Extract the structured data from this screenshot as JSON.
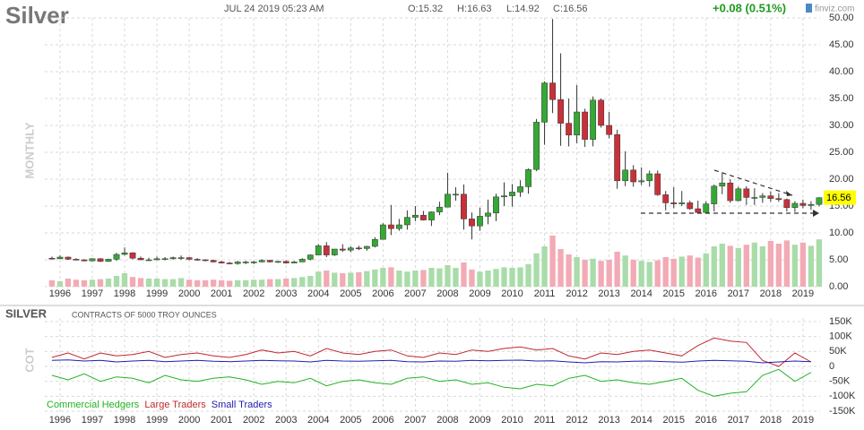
{
  "header": {
    "date": "JUL 24 2019 05:23 AM",
    "open": "O:15.32",
    "high": "H:16.63",
    "low": "L:14.92",
    "close": "C:16.56",
    "change": "+0.08 (0.51%)",
    "brand": "finviz.com"
  },
  "chart_data": [
    {
      "type": "candlestick",
      "title": "Silver",
      "period": "MONTHLY",
      "grid": true,
      "colors": {
        "up": "#35a835",
        "down": "#c8303a",
        "wick": "#333333",
        "volume_up": "#a9dca9",
        "volume_down": "#f3aab5",
        "last_label": "#ffff00"
      },
      "xlim": [
        1995.53,
        2019.53
      ],
      "xticks": [
        1996,
        1997,
        1998,
        1999,
        2000,
        2001,
        2002,
        2003,
        2004,
        2005,
        2006,
        2007,
        2008,
        2009,
        2010,
        2011,
        2012,
        2013,
        2014,
        2015,
        2016,
        2017,
        2018,
        2019
      ],
      "ylim": [
        0,
        50
      ],
      "yticks": [
        {
          "value": 0,
          "label": "0.00"
        },
        {
          "value": 5,
          "label": "5.00"
        },
        {
          "value": 10,
          "label": "10.00"
        },
        {
          "value": 15,
          "label": "15.00"
        },
        {
          "value": 20,
          "label": "20.00"
        },
        {
          "value": 25,
          "label": "25.00"
        },
        {
          "value": 30,
          "label": "30.00"
        },
        {
          "value": 35,
          "label": "35.00"
        },
        {
          "value": 40,
          "label": "40.00"
        },
        {
          "value": 45,
          "label": "45.00"
        },
        {
          "value": 50,
          "label": "50.00"
        }
      ],
      "x": [
        1995.75,
        1996.0,
        1996.25,
        1996.5,
        1996.75,
        1997.0,
        1997.25,
        1997.5,
        1997.75,
        1998.0,
        1998.25,
        1998.5,
        1998.75,
        1999.0,
        1999.25,
        1999.5,
        1999.75,
        2000.0,
        2000.25,
        2000.5,
        2000.75,
        2001.0,
        2001.25,
        2001.5,
        2001.75,
        2002.0,
        2002.25,
        2002.5,
        2002.75,
        2003.0,
        2003.25,
        2003.5,
        2003.75,
        2004.0,
        2004.25,
        2004.5,
        2004.75,
        2005.0,
        2005.25,
        2005.5,
        2005.75,
        2006.0,
        2006.25,
        2006.5,
        2006.75,
        2007.0,
        2007.25,
        2007.5,
        2007.75,
        2008.0,
        2008.25,
        2008.5,
        2008.75,
        2009.0,
        2009.25,
        2009.5,
        2009.75,
        2010.0,
        2010.25,
        2010.5,
        2010.75,
        2011.0,
        2011.25,
        2011.5,
        2011.75,
        2012.0,
        2012.25,
        2012.5,
        2012.75,
        2013.0,
        2013.25,
        2013.5,
        2013.75,
        2014.0,
        2014.25,
        2014.5,
        2014.75,
        2015.0,
        2015.25,
        2015.5,
        2015.75,
        2016.0,
        2016.25,
        2016.5,
        2016.75,
        2017.0,
        2017.25,
        2017.5,
        2017.75,
        2018.0,
        2018.25,
        2018.5,
        2018.75,
        2019.0,
        2019.25,
        2019.5
      ],
      "open": [
        5.3,
        5.2,
        5.5,
        5.1,
        5.0,
        4.8,
        5.2,
        4.7,
        5.1,
        6.0,
        6.3,
        5.3,
        5.0,
        5.0,
        5.2,
        5.2,
        5.4,
        5.4,
        5.1,
        5.0,
        4.9,
        4.6,
        4.4,
        4.3,
        4.6,
        4.6,
        4.6,
        4.9,
        4.6,
        4.7,
        4.4,
        4.6,
        5.1,
        5.9,
        7.6,
        5.9,
        7.0,
        6.8,
        7.2,
        7.1,
        7.5,
        8.8,
        11.5,
        10.8,
        11.5,
        12.9,
        13.3,
        12.4,
        13.9,
        14.8,
        17.2,
        17.2,
        12.6,
        11.3,
        13.1,
        13.7,
        16.7,
        16.9,
        17.6,
        18.6,
        21.8,
        30.6,
        37.9,
        34.8,
        30.4,
        28.2,
        32.5,
        27.4,
        34.7,
        30.0,
        28.3,
        19.7,
        21.7,
        19.5,
        19.7,
        21.0,
        17.1,
        15.6,
        15.4,
        15.6,
        14.5,
        13.8,
        15.4,
        18.7,
        19.3,
        16.0,
        18.2,
        16.6,
        16.6,
        16.9,
        16.4,
        16.2,
        14.7,
        15.5,
        15.1,
        15.3
      ],
      "high": [
        5.6,
        5.8,
        5.6,
        5.3,
        5.1,
        5.3,
        5.3,
        5.2,
        6.3,
        7.3,
        6.4,
        5.6,
        5.4,
        5.6,
        5.5,
        5.6,
        5.8,
        5.5,
        5.3,
        5.1,
        5.0,
        4.8,
        4.6,
        4.8,
        4.8,
        4.8,
        5.1,
        5.0,
        4.8,
        4.9,
        4.8,
        5.3,
        6.0,
        7.9,
        8.3,
        7.0,
        7.9,
        7.5,
        7.6,
        7.6,
        9.2,
        11.8,
        15.2,
        12.6,
        14.2,
        15.0,
        14.1,
        14.0,
        15.8,
        21.2,
        18.5,
        19.0,
        13.8,
        14.7,
        16.2,
        17.3,
        19.4,
        19.1,
        19.8,
        22.0,
        31.2,
        38.2,
        49.8,
        43.4,
        35.0,
        37.5,
        33.1,
        35.4,
        35.0,
        32.5,
        29.2,
        25.2,
        22.6,
        22.2,
        21.6,
        21.6,
        17.8,
        18.5,
        17.8,
        16.0,
        16.0,
        15.9,
        19.0,
        21.2,
        20.0,
        18.6,
        18.7,
        18.3,
        17.4,
        17.7,
        17.4,
        16.4,
        15.9,
        16.2,
        15.9,
        16.63
      ],
      "low": [
        5.1,
        5.1,
        5.0,
        4.9,
        4.7,
        4.7,
        4.6,
        4.6,
        4.8,
        5.8,
        5.1,
        4.9,
        4.8,
        4.9,
        4.9,
        5.0,
        5.0,
        4.9,
        4.8,
        4.7,
        4.5,
        4.3,
        4.2,
        4.1,
        4.2,
        4.2,
        4.5,
        4.5,
        4.4,
        4.3,
        4.4,
        4.6,
        4.9,
        5.9,
        5.5,
        5.7,
        6.5,
        6.4,
        6.8,
        6.7,
        7.3,
        8.8,
        9.6,
        10.4,
        10.6,
        12.2,
        12.3,
        11.3,
        13.3,
        14.8,
        16.0,
        10.6,
        8.8,
        10.4,
        11.6,
        12.2,
        15.0,
        14.9,
        16.7,
        17.3,
        21.5,
        26.4,
        32.3,
        26.2,
        26.1,
        26.7,
        26.0,
        26.1,
        29.6,
        27.6,
        18.2,
        18.7,
        18.6,
        18.9,
        18.6,
        16.9,
        14.2,
        14.6,
        15.0,
        14.3,
        13.6,
        13.7,
        14.0,
        17.2,
        15.6,
        15.9,
        15.2,
        15.2,
        15.6,
        15.8,
        15.8,
        14.0,
        13.9,
        14.6,
        14.3,
        14.92
      ],
      "close": [
        5.2,
        5.5,
        5.1,
        5.0,
        4.8,
        5.2,
        4.7,
        5.1,
        6.0,
        6.3,
        5.3,
        5.0,
        5.0,
        5.2,
        5.2,
        5.4,
        5.4,
        5.1,
        5.0,
        4.9,
        4.6,
        4.4,
        4.3,
        4.6,
        4.6,
        4.6,
        4.9,
        4.6,
        4.7,
        4.4,
        4.6,
        5.1,
        5.9,
        7.6,
        5.9,
        7.0,
        6.8,
        7.2,
        7.1,
        7.5,
        8.8,
        11.5,
        10.8,
        11.5,
        12.9,
        13.3,
        12.4,
        13.9,
        14.8,
        17.2,
        17.2,
        12.6,
        11.3,
        13.1,
        13.7,
        16.7,
        16.9,
        17.6,
        18.6,
        21.8,
        30.6,
        37.9,
        34.8,
        30.4,
        28.2,
        32.5,
        27.4,
        34.7,
        30.0,
        28.3,
        19.7,
        21.7,
        19.5,
        19.7,
        21.0,
        17.1,
        15.6,
        15.4,
        15.6,
        14.5,
        13.8,
        15.4,
        18.7,
        19.3,
        16.0,
        18.2,
        16.6,
        16.6,
        16.9,
        16.4,
        16.2,
        14.7,
        15.5,
        15.1,
        15.3,
        16.56
      ],
      "volume": [
        1.2,
        1.0,
        1.5,
        1.3,
        1.2,
        1.3,
        1.4,
        1.5,
        2.0,
        2.5,
        1.8,
        1.6,
        1.5,
        1.5,
        1.4,
        1.4,
        1.6,
        1.3,
        1.2,
        1.2,
        1.3,
        1.2,
        1.1,
        1.2,
        1.2,
        1.3,
        1.3,
        1.4,
        1.4,
        1.5,
        1.6,
        1.8,
        2.0,
        2.8,
        3.0,
        2.6,
        2.5,
        2.6,
        2.7,
        2.9,
        3.2,
        3.5,
        3.6,
        3.0,
        2.8,
        3.0,
        3.1,
        3.5,
        3.4,
        4.0,
        3.5,
        4.5,
        3.2,
        2.8,
        3.0,
        3.3,
        3.6,
        3.5,
        3.6,
        4.2,
        6.2,
        7.5,
        9.5,
        7.0,
        6.0,
        5.5,
        5.0,
        5.2,
        4.8,
        5.0,
        6.5,
        5.8,
        5.0,
        4.8,
        4.6,
        4.9,
        5.5,
        5.2,
        5.6,
        5.8,
        5.4,
        6.2,
        7.5,
        8.0,
        7.6,
        7.2,
        7.8,
        8.2,
        7.5,
        8.5,
        8.0,
        8.6,
        7.8,
        8.2,
        7.6,
        8.8
      ]
    },
    {
      "type": "line",
      "title": "SILVER",
      "subtitle": "CONTRACTS OF 5000 TROY OUNCES",
      "ylabel": "COT",
      "grid": true,
      "xlim": [
        1995.53,
        2019.53
      ],
      "xticks": [
        1996,
        1997,
        1998,
        1999,
        2000,
        2001,
        2002,
        2003,
        2004,
        2005,
        2006,
        2007,
        2008,
        2009,
        2010,
        2011,
        2012,
        2013,
        2014,
        2015,
        2016,
        2017,
        2018,
        2019
      ],
      "ylim": [
        -150000,
        150000
      ],
      "yticks": [
        {
          "value": 150000,
          "label": "150K"
        },
        {
          "value": 100000,
          "label": "100K"
        },
        {
          "value": 50000,
          "label": "50K"
        },
        0,
        {
          "value": -50000,
          "label": "-50K"
        },
        {
          "value": -100000,
          "label": "-100K"
        },
        {
          "value": -150000,
          "label": "-150K"
        }
      ],
      "x": [
        1995.75,
        1996.25,
        1996.75,
        1997.25,
        1997.75,
        1998.25,
        1998.75,
        1999.25,
        1999.75,
        2000.25,
        2000.75,
        2001.25,
        2001.75,
        2002.25,
        2002.75,
        2003.25,
        2003.75,
        2004.25,
        2004.75,
        2005.25,
        2005.75,
        2006.25,
        2006.75,
        2007.25,
        2007.75,
        2008.25,
        2008.75,
        2009.25,
        2009.75,
        2010.25,
        2010.75,
        2011.25,
        2011.75,
        2012.25,
        2012.75,
        2013.25,
        2013.75,
        2014.25,
        2014.75,
        2015.25,
        2015.75,
        2016.25,
        2016.75,
        2017.25,
        2017.75,
        2018.25,
        2018.75,
        2019.25
      ],
      "series": [
        {
          "name": "Commercial Hedgers",
          "color": "#22b322",
          "values": [
            -30000,
            -45000,
            -25000,
            -50000,
            -35000,
            -40000,
            -55000,
            -30000,
            -45000,
            -50000,
            -40000,
            -35000,
            -45000,
            -60000,
            -50000,
            -55000,
            -40000,
            -65000,
            -50000,
            -45000,
            -55000,
            -60000,
            -40000,
            -35000,
            -50000,
            -45000,
            -60000,
            -55000,
            -70000,
            -75000,
            -60000,
            -65000,
            -40000,
            -30000,
            -50000,
            -45000,
            -55000,
            -60000,
            -50000,
            -40000,
            -80000,
            -100000,
            -90000,
            -85000,
            -30000,
            -10000,
            -50000,
            -20000
          ]
        },
        {
          "name": "Large Traders",
          "color": "#c0282d",
          "values": [
            30000,
            45000,
            25000,
            45000,
            35000,
            40000,
            50000,
            30000,
            40000,
            45000,
            35000,
            30000,
            40000,
            55000,
            45000,
            50000,
            35000,
            60000,
            45000,
            40000,
            50000,
            55000,
            35000,
            30000,
            45000,
            40000,
            55000,
            50000,
            60000,
            65000,
            55000,
            60000,
            35000,
            25000,
            45000,
            40000,
            50000,
            55000,
            45000,
            35000,
            70000,
            95000,
            85000,
            80000,
            20000,
            0,
            45000,
            15000
          ]
        },
        {
          "name": "Small Traders",
          "color": "#2020b0",
          "values": [
            20000,
            22000,
            18000,
            20000,
            15000,
            18000,
            20000,
            16000,
            18000,
            20000,
            17000,
            16000,
            18000,
            20000,
            19000,
            18000,
            15000,
            20000,
            18000,
            17000,
            19000,
            20000,
            16000,
            15000,
            18000,
            17000,
            20000,
            19000,
            20000,
            21000,
            18000,
            19000,
            15000,
            12000,
            16000,
            15000,
            17000,
            18000,
            16000,
            14000,
            18000,
            20000,
            19000,
            17000,
            12000,
            15000,
            18000,
            16000
          ]
        }
      ]
    }
  ]
}
